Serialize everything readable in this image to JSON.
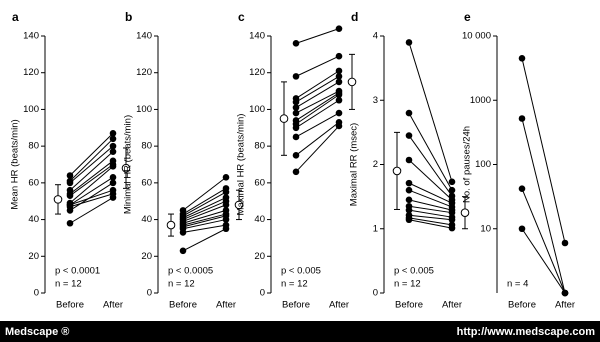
{
  "chart_data": [
    {
      "type": "paired",
      "label": "a",
      "ylabel": "Mean HR (beats/min)",
      "categories": [
        "Before",
        "After"
      ],
      "color": "#000000",
      "ylim": [
        0,
        140
      ],
      "yticks": [
        0,
        20,
        40,
        60,
        80,
        100,
        120,
        140
      ],
      "series": [
        {
          "values": [
            64,
            87
          ]
        },
        {
          "values": [
            61,
            84
          ]
        },
        {
          "values": [
            60,
            80
          ]
        },
        {
          "values": [
            56,
            77
          ]
        },
        {
          "values": [
            54,
            72
          ]
        },
        {
          "values": [
            53,
            70
          ]
        },
        {
          "values": [
            49,
            69
          ]
        },
        {
          "values": [
            48,
            63
          ]
        },
        {
          "values": [
            48,
            56
          ]
        },
        {
          "values": [
            47,
            54
          ]
        },
        {
          "values": [
            45,
            60
          ]
        },
        {
          "values": [
            38,
            52
          ]
        }
      ],
      "mean": [
        51,
        68
      ],
      "error": [
        8,
        11
      ],
      "annotations": [
        "p < 0.0001",
        "n = 12"
      ]
    },
    {
      "type": "paired",
      "label": "b",
      "ylabel": "Minimal HR (beats/min)",
      "categories": [
        "Before",
        "After"
      ],
      "color": "#000000",
      "ylim": [
        0,
        140
      ],
      "yticks": [
        0,
        20,
        40,
        60,
        80,
        100,
        120,
        140
      ],
      "series": [
        {
          "values": [
            45,
            63
          ]
        },
        {
          "values": [
            43,
            57
          ]
        },
        {
          "values": [
            42,
            55
          ]
        },
        {
          "values": [
            41,
            52
          ]
        },
        {
          "values": [
            40,
            50
          ]
        },
        {
          "values": [
            39,
            48
          ]
        },
        {
          "values": [
            38,
            45
          ]
        },
        {
          "values": [
            37,
            43
          ]
        },
        {
          "values": [
            36,
            42
          ]
        },
        {
          "values": [
            35,
            40
          ]
        },
        {
          "values": [
            33,
            37
          ]
        },
        {
          "values": [
            23,
            35
          ]
        }
      ],
      "mean": [
        37,
        48
      ],
      "error": [
        6,
        8
      ],
      "annotations": [
        "p < 0.0005",
        "n = 12"
      ]
    },
    {
      "type": "paired",
      "label": "c",
      "ylabel": "Maximal HR (beats/min)",
      "categories": [
        "Before",
        "After"
      ],
      "color": "#000000",
      "ylim": [
        0,
        140
      ],
      "yticks": [
        0,
        20,
        40,
        60,
        80,
        100,
        120,
        140
      ],
      "series": [
        {
          "values": [
            136,
            144
          ]
        },
        {
          "values": [
            118,
            129
          ]
        },
        {
          "values": [
            106,
            121
          ]
        },
        {
          "values": [
            104,
            118
          ]
        },
        {
          "values": [
            101,
            115
          ]
        },
        {
          "values": [
            98,
            110
          ]
        },
        {
          "values": [
            94,
            109
          ]
        },
        {
          "values": [
            92,
            108
          ]
        },
        {
          "values": [
            90,
            105
          ]
        },
        {
          "values": [
            85,
            98
          ]
        },
        {
          "values": [
            75,
            93
          ]
        },
        {
          "values": [
            66,
            91
          ]
        }
      ],
      "mean": [
        95,
        115
      ],
      "error": [
        20,
        15
      ],
      "annotations": [
        "p < 0.005",
        "n = 12"
      ]
    },
    {
      "type": "paired",
      "label": "d",
      "ylabel": "Maximal RR (msec)",
      "categories": [
        "Before",
        "After"
      ],
      "color": "#000000",
      "ylim": [
        0,
        4
      ],
      "yticks": [
        0,
        1,
        2,
        3,
        4
      ],
      "series": [
        {
          "values": [
            3.9,
            1.73
          ]
        },
        {
          "values": [
            2.8,
            1.6
          ]
        },
        {
          "values": [
            2.45,
            1.51
          ]
        },
        {
          "values": [
            2.07,
            1.45
          ]
        },
        {
          "values": [
            1.71,
            1.4
          ]
        },
        {
          "values": [
            1.6,
            1.34
          ]
        },
        {
          "values": [
            1.45,
            1.29
          ]
        },
        {
          "values": [
            1.35,
            1.25
          ]
        },
        {
          "values": [
            1.29,
            1.18
          ]
        },
        {
          "values": [
            1.21,
            1.14
          ]
        },
        {
          "values": [
            1.17,
            1.06
          ]
        },
        {
          "values": [
            1.14,
            1.01
          ]
        }
      ],
      "mean": [
        1.9,
        1.25
      ],
      "error": [
        0.6,
        0.25
      ],
      "annotations": [
        "p < 0.005",
        "n = 12"
      ]
    },
    {
      "type": "paired",
      "label": "e",
      "ylabel": "No. of pauses/24h",
      "categories": [
        "Before",
        "After"
      ],
      "color": "#000000",
      "log": true,
      "ylim": [
        1,
        10000
      ],
      "yticks": [
        10,
        100,
        1000,
        {
          "value": 10000,
          "label": "10 000"
        }
      ],
      "series": [
        {
          "values": [
            4500,
            6
          ]
        },
        {
          "values": [
            520,
            1
          ]
        },
        {
          "values": [
            42,
            1
          ]
        },
        {
          "values": [
            10,
            1
          ]
        }
      ],
      "annotations": [
        "n = 4"
      ]
    }
  ],
  "footer": {
    "left": "Medscape ®",
    "right": "http://www.medscape.com"
  }
}
